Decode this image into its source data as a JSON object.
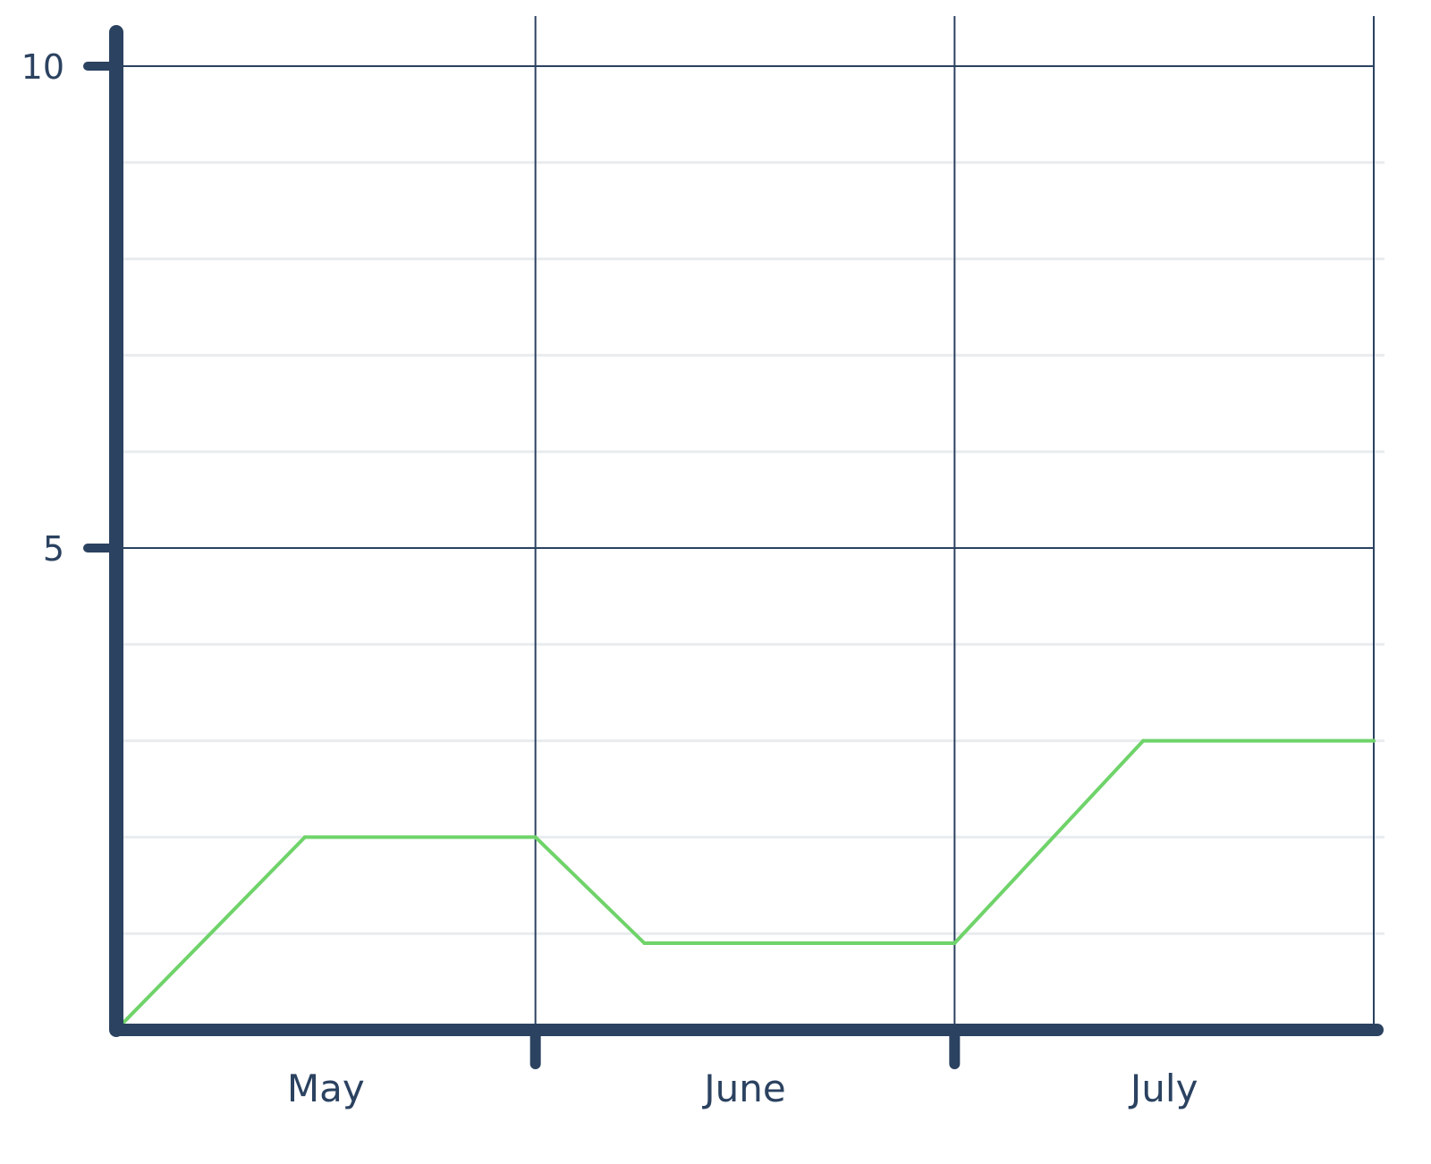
{
  "chart_data": {
    "type": "line",
    "x_categories": [
      "May",
      "June",
      "July"
    ],
    "x_range": [
      0,
      3
    ],
    "ylim": [
      0,
      10
    ],
    "y_ticks": [
      {
        "value": 10,
        "label": "10"
      },
      {
        "value": 5,
        "label": "5"
      }
    ],
    "y_minor_step": 1,
    "grid": true,
    "series": [
      {
        "color": "#6fd36a",
        "points": [
          {
            "x": 0.0,
            "y": 0
          },
          {
            "x": 0.45,
            "y": 2
          },
          {
            "x": 1.0,
            "y": 2
          },
          {
            "x": 1.26,
            "y": 0.9
          },
          {
            "x": 2.0,
            "y": 0.9
          },
          {
            "x": 2.45,
            "y": 3
          },
          {
            "x": 3.0,
            "y": 3
          }
        ]
      }
    ],
    "colors": {
      "axis": "#2b4260",
      "major_grid": "#2b4260",
      "minor_grid": "#e9ecef"
    }
  }
}
